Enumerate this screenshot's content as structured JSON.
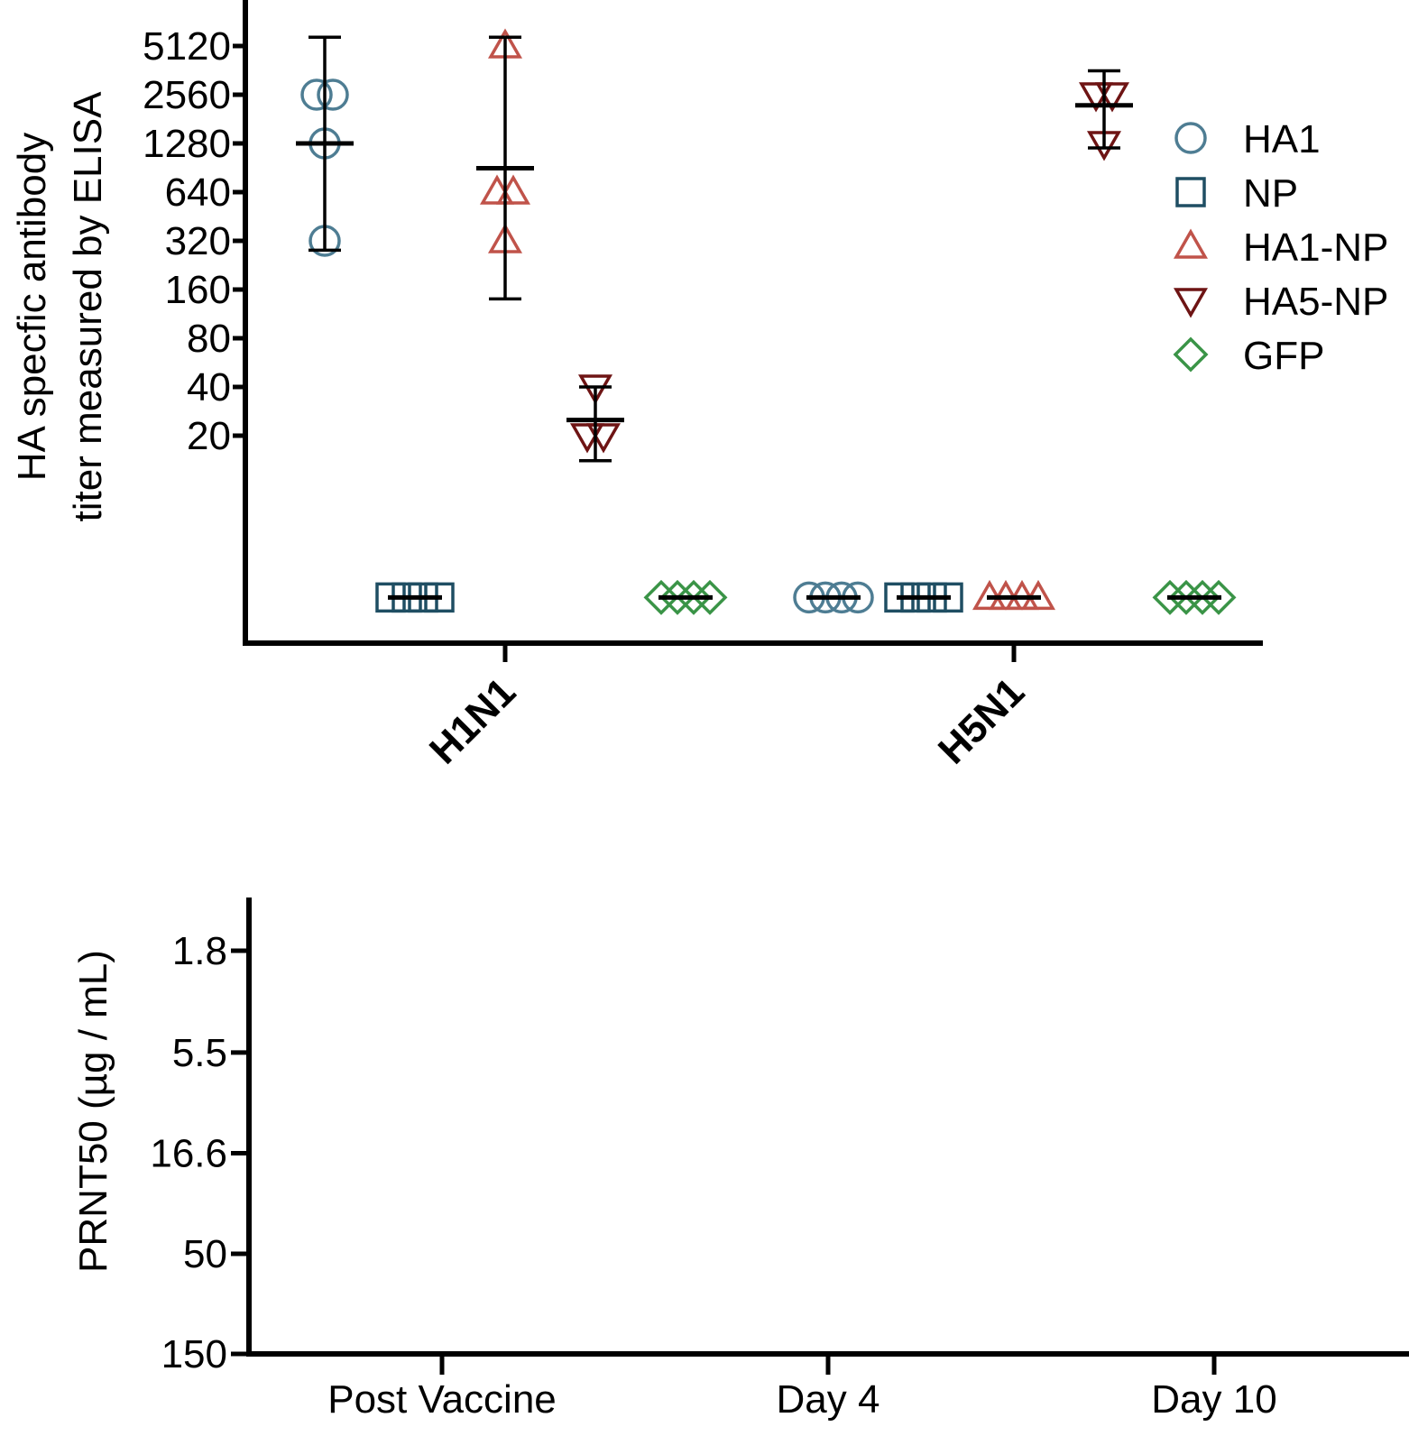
{
  "chart_data": [
    {
      "type": "scatter",
      "ylabel_line1": "HA specfic antibody",
      "ylabel_line2": "titer measured by ELISA",
      "yscale": "log2",
      "yticks": [
        20,
        40,
        80,
        160,
        320,
        640,
        1280,
        2560,
        5120
      ],
      "ytick_labels": [
        "20",
        "40",
        "80",
        "160",
        "320",
        "640",
        "1280",
        "2560",
        "5120"
      ],
      "below_detection_value": 2,
      "categories": [
        "H1N1",
        "H5N1"
      ],
      "series": [
        {
          "name": "HA1",
          "marker": "circle",
          "color": "#4e7d93",
          "points": {
            "H1N1": [
              2560,
              2560,
              1280,
              320
            ],
            "H5N1": [
              2,
              2,
              2,
              2
            ]
          },
          "mean": {
            "H1N1": 1280,
            "H5N1": 2
          },
          "err": {
            "H1N1": [
              280,
              5800
            ],
            "H5N1": null
          }
        },
        {
          "name": "NP",
          "marker": "square",
          "color": "#1f4e63",
          "points": {
            "H1N1": [
              2,
              2,
              2,
              2
            ],
            "H5N1": [
              2,
              2,
              2,
              2
            ]
          },
          "mean": {
            "H1N1": 2,
            "H5N1": 2
          },
          "err": {
            "H1N1": null,
            "H5N1": null
          }
        },
        {
          "name": "HA1-NP",
          "marker": "triangle-up",
          "color": "#c0534a",
          "points": {
            "H1N1": [
              5120,
              640,
              640,
              320
            ],
            "H5N1": [
              2,
              2,
              2,
              2
            ]
          },
          "mean": {
            "H1N1": 900,
            "H5N1": 2
          },
          "err": {
            "H1N1": [
              140,
              5800
            ],
            "H5N1": null
          }
        },
        {
          "name": "HA5-NP",
          "marker": "triangle-down",
          "color": "#6e1414",
          "points": {
            "H1N1": [
              40,
              20,
              20
            ],
            "H5N1": [
              2560,
              2560,
              1280
            ]
          },
          "mean": {
            "H1N1": 25,
            "H5N1": 2200
          },
          "err": {
            "H1N1": [
              14,
              40
            ],
            "H5N1": [
              1200,
              3600
            ]
          }
        },
        {
          "name": "GFP",
          "marker": "diamond",
          "color": "#3a9447",
          "points": {
            "H1N1": [
              2,
              2,
              2,
              2
            ],
            "H5N1": [
              2,
              2,
              2,
              2
            ]
          },
          "mean": {
            "H1N1": 2,
            "H5N1": 2
          },
          "err": {
            "H1N1": null,
            "H5N1": null
          }
        }
      ]
    },
    {
      "type": "scatter",
      "ylabel": "PRNT50 (µg / mL)",
      "yscale": "log-inverted",
      "yticks": [
        1.8,
        5.5,
        16.6,
        50,
        150
      ],
      "ytick_labels": [
        "1.8",
        "5.5",
        "16.6",
        "50",
        "150"
      ],
      "categories": [
        "Post Vaccine",
        "Day 4",
        "Day 10"
      ],
      "series": []
    }
  ]
}
